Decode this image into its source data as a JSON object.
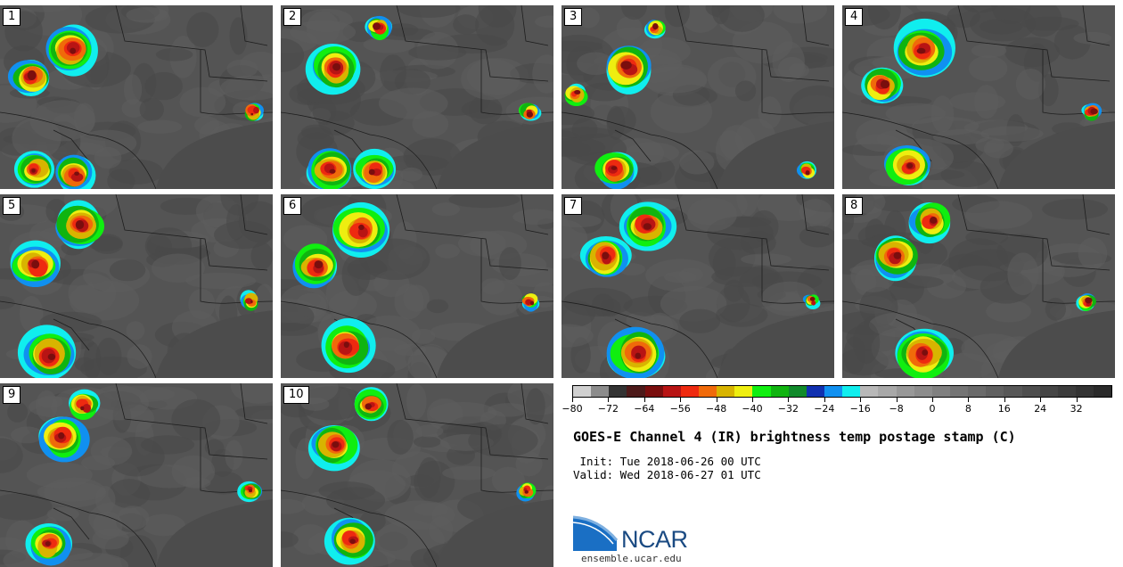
{
  "panels": [
    {
      "label": "1"
    },
    {
      "label": "2"
    },
    {
      "label": "3"
    },
    {
      "label": "4"
    },
    {
      "label": "5"
    },
    {
      "label": "6"
    },
    {
      "label": "7"
    },
    {
      "label": "8"
    },
    {
      "label": "9"
    },
    {
      "label": "10"
    }
  ],
  "colorbar": {
    "colors": [
      "#d0d0d0",
      "#8c8c8c",
      "#333333",
      "#4d1a1a",
      "#7a0e0e",
      "#b81414",
      "#ee2a10",
      "#f06a0a",
      "#d8b400",
      "#eeee10",
      "#10ee10",
      "#10b410",
      "#108a2a",
      "#1030b0",
      "#1090f0",
      "#10eeee",
      "#b8b8b8",
      "#a8a8a8",
      "#989898",
      "#8c8c8c",
      "#808080",
      "#747474",
      "#6a6a6a",
      "#606060",
      "#575757",
      "#4e4e4e",
      "#454545",
      "#3c3c3c",
      "#333333",
      "#2a2a2a"
    ],
    "ticks": [
      "−80",
      "−72",
      "−64",
      "−56",
      "−48",
      "−40",
      "−32",
      "−24",
      "−16",
      "−8",
      "0",
      "8",
      "16",
      "24",
      "32"
    ]
  },
  "title": "GOES-E Channel 4 (IR) brightness temp postage stamp (C)",
  "init_line": " Init: Tue 2018-06-26 00 UTC",
  "valid_line": "Valid: Wed 2018-06-27 01 UTC",
  "logo": {
    "text": "NCAR",
    "accent": "#1a4a82"
  },
  "site": "ensemble.ucar.edu"
}
